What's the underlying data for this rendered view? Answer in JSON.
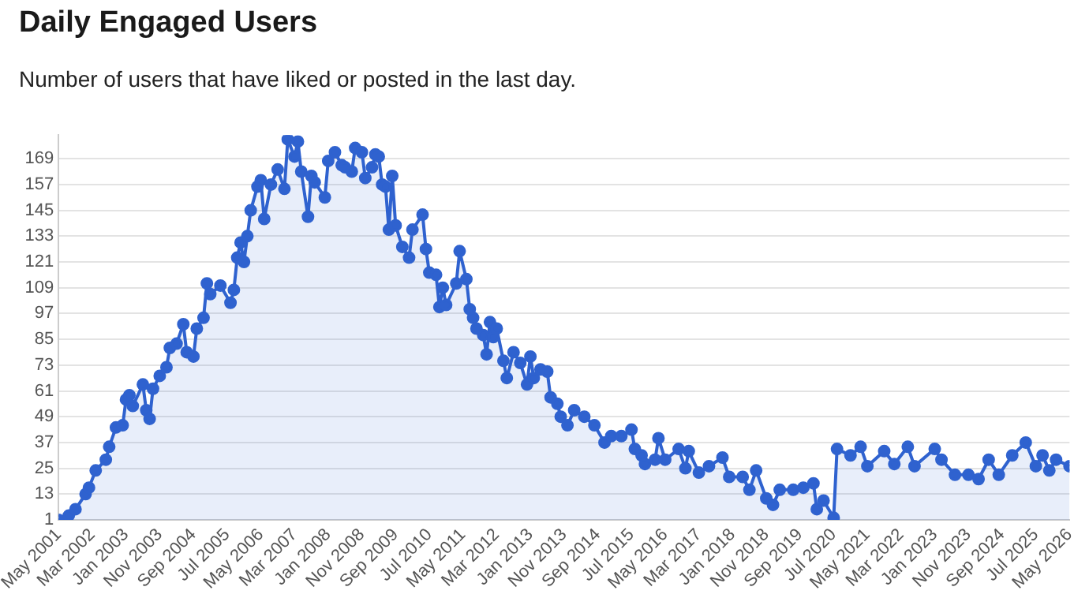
{
  "chart_data": {
    "type": "area",
    "title": "Daily Engaged Users",
    "subtitle": "Number of users that have liked or posted in the last day.",
    "x": [
      "2001-05",
      "2001-08",
      "2001-10",
      "2002-01",
      "2002-02",
      "2002-04",
      "2002-07",
      "2002-08",
      "2002-10",
      "2002-12",
      "2003-01",
      "2003-02",
      "2003-03",
      "2003-06",
      "2003-07",
      "2003-08",
      "2003-09",
      "2003-11",
      "2004-01",
      "2004-02",
      "2004-04",
      "2004-06",
      "2004-07",
      "2004-09",
      "2004-10",
      "2004-12",
      "2005-01",
      "2005-02",
      "2005-05",
      "2005-08",
      "2005-09",
      "2005-10",
      "2005-11",
      "2005-12",
      "2006-01",
      "2006-02",
      "2006-04",
      "2006-05",
      "2006-06",
      "2006-08",
      "2006-10",
      "2006-12",
      "2007-01",
      "2007-03",
      "2007-04",
      "2007-05",
      "2007-07",
      "2007-08",
      "2007-09",
      "2007-12",
      "2008-01",
      "2008-03",
      "2008-05",
      "2008-06",
      "2008-08",
      "2008-09",
      "2008-11",
      "2008-12",
      "2009-02",
      "2009-03",
      "2009-04",
      "2009-05",
      "2009-06",
      "2009-07",
      "2009-08",
      "2009-09",
      "2009-11",
      "2010-01",
      "2010-02",
      "2010-05",
      "2010-06",
      "2010-07",
      "2010-09",
      "2010-10",
      "2010-11",
      "2010-12",
      "2011-03",
      "2011-04",
      "2011-06",
      "2011-07",
      "2011-08",
      "2011-09",
      "2011-11",
      "2011-12",
      "2012-01",
      "2012-02",
      "2012-03",
      "2012-05",
      "2012-06",
      "2012-08",
      "2012-10",
      "2012-12",
      "2013-01",
      "2013-02",
      "2013-04",
      "2013-06",
      "2013-07",
      "2013-09",
      "2013-10",
      "2013-12",
      "2014-02",
      "2014-05",
      "2014-08",
      "2014-11",
      "2015-01",
      "2015-04",
      "2015-07",
      "2015-08",
      "2015-10",
      "2015-11",
      "2016-02",
      "2016-03",
      "2016-05",
      "2016-09",
      "2016-11",
      "2016-12",
      "2017-03",
      "2017-06",
      "2017-10",
      "2017-12",
      "2018-04",
      "2018-06",
      "2018-08",
      "2018-11",
      "2019-01",
      "2019-03",
      "2019-07",
      "2019-10",
      "2020-01",
      "2020-02",
      "2020-04",
      "2020-07",
      "2020-08",
      "2020-12",
      "2021-03",
      "2021-05",
      "2021-10",
      "2022-01",
      "2022-05",
      "2022-07",
      "2023-01",
      "2023-03",
      "2023-07",
      "2023-11",
      "2024-02",
      "2024-05",
      "2024-08",
      "2024-12",
      "2025-04",
      "2025-07",
      "2025-09",
      "2025-11",
      "2026-01",
      "2026-05"
    ],
    "series": [
      {
        "color": "#2f62cf",
        "values": [
          1,
          3,
          6,
          13,
          16,
          24,
          29,
          35,
          44,
          45,
          57,
          59,
          54,
          64,
          52,
          48,
          62,
          68,
          72,
          81,
          83,
          92,
          79,
          77,
          90,
          95,
          111,
          106,
          110,
          102,
          108,
          123,
          130,
          121,
          133,
          145,
          156,
          159,
          141,
          157,
          164,
          155,
          178,
          170,
          177,
          163,
          142,
          161,
          158,
          151,
          168,
          172,
          166,
          165,
          163,
          174,
          172,
          160,
          165,
          171,
          170,
          157,
          156,
          136,
          161,
          138,
          128,
          123,
          136,
          143,
          127,
          116,
          115,
          100,
          109,
          101,
          111,
          126,
          113,
          99,
          95,
          90,
          87,
          78,
          93,
          86,
          90,
          75,
          67,
          79,
          74,
          64,
          77,
          67,
          71,
          70,
          58,
          55,
          49,
          45,
          52,
          49,
          45,
          37,
          40,
          40,
          43,
          34,
          31,
          27,
          29,
          39,
          29,
          34,
          25,
          33,
          23,
          26,
          30,
          21,
          21,
          15,
          24,
          11,
          8,
          15,
          15,
          16,
          18,
          6,
          10,
          2,
          34,
          31,
          35,
          26,
          33,
          27,
          35,
          26,
          34,
          29,
          22,
          22,
          20,
          29,
          22,
          31,
          37,
          26,
          31,
          24,
          29,
          26
        ]
      }
    ],
    "xlim": [
      "2001-05",
      "2026-05"
    ],
    "xticks": [
      {
        "value": "2001-05",
        "label": "May 2001"
      },
      {
        "value": "2002-03",
        "label": "Mar 2002"
      },
      {
        "value": "2003-01",
        "label": "Jan 2003"
      },
      {
        "value": "2003-11",
        "label": "Nov 2003"
      },
      {
        "value": "2004-09",
        "label": "Sep 2004"
      },
      {
        "value": "2005-07",
        "label": "Jul 2005"
      },
      {
        "value": "2006-05",
        "label": "May 2006"
      },
      {
        "value": "2007-03",
        "label": "Mar 2007"
      },
      {
        "value": "2008-01",
        "label": "Jan 2008"
      },
      {
        "value": "2008-11",
        "label": "Nov 2008"
      },
      {
        "value": "2009-09",
        "label": "Sep 2009"
      },
      {
        "value": "2010-07",
        "label": "Jul 2010"
      },
      {
        "value": "2011-05",
        "label": "May 2011"
      },
      {
        "value": "2012-03",
        "label": "Mar 2012"
      },
      {
        "value": "2013-01",
        "label": "Jan 2013"
      },
      {
        "value": "2013-11",
        "label": "Nov 2013"
      },
      {
        "value": "2014-09",
        "label": "Sep 2014"
      },
      {
        "value": "2015-07",
        "label": "Jul 2015"
      },
      {
        "value": "2016-05",
        "label": "May 2016"
      },
      {
        "value": "2017-03",
        "label": "Mar 2017"
      },
      {
        "value": "2018-01",
        "label": "Jan 2018"
      },
      {
        "value": "2018-11",
        "label": "Nov 2018"
      },
      {
        "value": "2019-09",
        "label": "Sep 2019"
      },
      {
        "value": "2020-07",
        "label": "Jul 2020"
      },
      {
        "value": "2021-05",
        "label": "May 2021"
      },
      {
        "value": "2022-03",
        "label": "Mar 2022"
      },
      {
        "value": "2023-01",
        "label": "Jan 2023"
      },
      {
        "value": "2023-11",
        "label": "Nov 2023"
      },
      {
        "value": "2024-09",
        "label": "Sep 2024"
      },
      {
        "value": "2025-07",
        "label": "Jul 2025"
      },
      {
        "value": "2026-05",
        "label": "May 2026"
      }
    ],
    "ylim": [
      1,
      180
    ],
    "yticks": [
      1,
      13,
      25,
      37,
      49,
      61,
      73,
      85,
      97,
      109,
      121,
      133,
      145,
      157,
      169
    ],
    "grid": "y",
    "legend": false,
    "marker": "circle",
    "line_style": "solid"
  }
}
